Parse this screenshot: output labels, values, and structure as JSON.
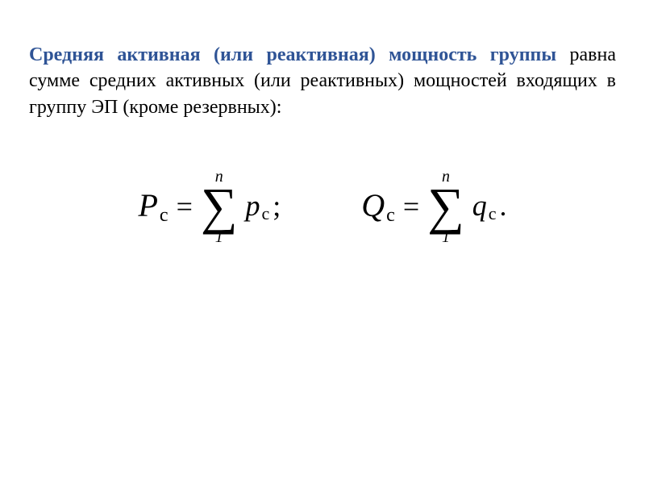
{
  "text": {
    "heading": "Средняя активная (или реактивная) мощность группы",
    "body": " равна сумме средних активных (или реактивных) мощностей входящих в группу ЭП (кроме резервных):"
  },
  "colors": {
    "heading": "#2f5496",
    "body": "#000000",
    "background": "#ffffff"
  },
  "typography": {
    "paragraph_fontsize": 24,
    "lhs_fontsize": 40,
    "sigma_fontsize": 64,
    "term_fontsize": 36,
    "limit_fontsize": 20,
    "font_family": "Times New Roman"
  },
  "formulas": {
    "left": {
      "lhs_var": "P",
      "lhs_sub": "с",
      "upper": "n",
      "lower": "1",
      "term_var": "p",
      "term_sub": "с",
      "punct": ";"
    },
    "right": {
      "lhs_var": "Q",
      "lhs_sub": "с",
      "upper": "n",
      "lower": "1",
      "term_var": "q",
      "term_sub": "с",
      "punct": "."
    },
    "equals": "=",
    "sigma": "∑"
  }
}
